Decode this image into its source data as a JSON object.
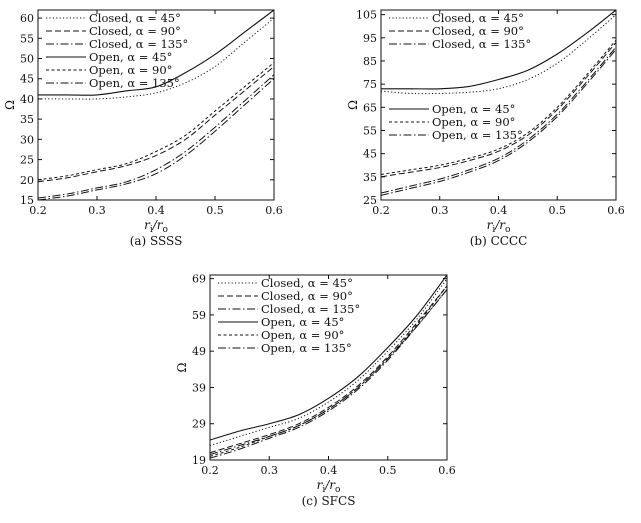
{
  "chart_data": [
    {
      "type": "line",
      "caption": "(a) SSSS",
      "xlabel_main": "r",
      "xlabel_sub1": "i",
      "xlabel_slash": "/r",
      "xlabel_sub2": "o",
      "ylabel": "Ω",
      "xlim": [
        0.2,
        0.6
      ],
      "ylim": [
        15,
        62
      ],
      "xticks": [
        "0.2",
        "0.3",
        "0.4",
        "0.5",
        "0.6"
      ],
      "yticks": [
        "15",
        "20",
        "25",
        "30",
        "35",
        "40",
        "45",
        "50",
        "55",
        "60"
      ],
      "x": [
        0.2,
        0.25,
        0.3,
        0.35,
        0.4,
        0.45,
        0.5,
        0.55,
        0.6
      ],
      "legend": [
        {
          "key": "c45",
          "label": "Closed, α = 45°"
        },
        {
          "key": "c90",
          "label": "Closed, α = 90°"
        },
        {
          "key": "c135",
          "label": "Closed, α = 135°"
        },
        {
          "key": "o45",
          "label": "Open, α = 45°"
        },
        {
          "key": "o90",
          "label": "Open, α = 90°"
        },
        {
          "key": "o135",
          "label": "Open, α = 135°"
        }
      ],
      "series": [
        {
          "key": "c45",
          "dash": "dot",
          "values": [
            40,
            40,
            40,
            40.5,
            41.5,
            44,
            48,
            54,
            60
          ]
        },
        {
          "key": "c90",
          "dash": "dash",
          "values": [
            19.5,
            20.5,
            22,
            23.5,
            26,
            30,
            36,
            42,
            48
          ]
        },
        {
          "key": "c135",
          "dash": "dashdot",
          "values": [
            15.5,
            16.5,
            18,
            19.5,
            22.5,
            27,
            33,
            39.5,
            46
          ]
        },
        {
          "key": "o45",
          "dash": "solid",
          "values": [
            41,
            41,
            41,
            42,
            43,
            46.5,
            51,
            56.5,
            62
          ]
        },
        {
          "key": "o90",
          "dash": "shortdash",
          "values": [
            20,
            21,
            22.5,
            24,
            27,
            31,
            37,
            43,
            49
          ]
        },
        {
          "key": "o135",
          "dash": "dashdot",
          "values": [
            15,
            16,
            17.5,
            19,
            21.5,
            26,
            32,
            38.5,
            45
          ]
        }
      ]
    },
    {
      "type": "line",
      "caption": "(b) CCCC",
      "xlabel_main": "r",
      "xlabel_sub1": "i",
      "xlabel_slash": "/r",
      "xlabel_sub2": "o",
      "ylabel": "Ω",
      "xlim": [
        0.2,
        0.6
      ],
      "ylim": [
        25,
        107
      ],
      "xticks": [
        "0.2",
        "0.3",
        "0.4",
        "0.5",
        "0.6"
      ],
      "yticks": [
        "25",
        "35",
        "45",
        "55",
        "65",
        "75",
        "85",
        "95",
        "105"
      ],
      "x": [
        0.2,
        0.25,
        0.3,
        0.35,
        0.4,
        0.45,
        0.5,
        0.55,
        0.6
      ],
      "legend": [
        {
          "key": "c45",
          "label": "Closed, α = 45°"
        },
        {
          "key": "c90",
          "label": "Closed, α = 90°"
        },
        {
          "key": "c135",
          "label": "Closed, α = 135°"
        },
        {
          "key": "o45",
          "label": "Open, α = 45°"
        },
        {
          "key": "o90",
          "label": "Open, α = 90°"
        },
        {
          "key": "o135",
          "label": "Open, α = 135°"
        }
      ],
      "series": [
        {
          "key": "c45",
          "dash": "dot",
          "values": [
            72,
            71,
            71,
            71.5,
            73,
            77,
            84,
            94,
            105
          ]
        },
        {
          "key": "c90",
          "dash": "dash",
          "values": [
            35,
            37,
            39,
            42,
            46,
            53,
            64,
            78,
            93
          ]
        },
        {
          "key": "c135",
          "dash": "dashdot",
          "values": [
            28,
            31,
            34,
            38,
            43,
            51,
            62,
            76,
            91
          ]
        },
        {
          "key": "o45",
          "dash": "solid",
          "values": [
            73,
            73,
            73,
            74,
            77,
            81,
            88,
            97,
            107
          ]
        },
        {
          "key": "o90",
          "dash": "shortdash",
          "values": [
            36,
            38,
            40,
            43,
            47,
            54,
            65,
            79,
            94
          ]
        },
        {
          "key": "o135",
          "dash": "dashdot",
          "values": [
            27,
            30,
            33,
            37,
            42,
            50,
            61,
            75,
            90
          ]
        }
      ]
    },
    {
      "type": "line",
      "caption": "(c) SFCS",
      "xlabel_main": "r",
      "xlabel_sub1": "i",
      "xlabel_slash": "/r",
      "xlabel_sub2": "o",
      "ylabel": "Ω",
      "xlim": [
        0.2,
        0.6
      ],
      "ylim": [
        19,
        70
      ],
      "xticks": [
        "0.2",
        "0.3",
        "0.4",
        "0.5",
        "0.6"
      ],
      "yticks": [
        "19",
        "29",
        "39",
        "49",
        "59",
        "69"
      ],
      "x": [
        0.2,
        0.25,
        0.3,
        0.35,
        0.4,
        0.45,
        0.5,
        0.55,
        0.6
      ],
      "legend": [
        {
          "key": "c45",
          "label": "Closed, α = 45°"
        },
        {
          "key": "c90",
          "label": "Closed, α = 90°"
        },
        {
          "key": "c135",
          "label": "Closed, α = 135°"
        },
        {
          "key": "o45",
          "label": "Open, α = 45°"
        },
        {
          "key": "o90",
          "label": "Open, α = 90°"
        },
        {
          "key": "o135",
          "label": "Open, α = 135°"
        }
      ],
      "series": [
        {
          "key": "c45",
          "dash": "dot",
          "values": [
            23,
            25.5,
            28,
            30.5,
            35,
            41,
            49,
            58,
            69
          ]
        },
        {
          "key": "c90",
          "dash": "dash",
          "values": [
            21,
            23.5,
            26,
            29,
            33.5,
            39.5,
            47.5,
            57,
            67
          ]
        },
        {
          "key": "c135",
          "dash": "dashdot",
          "values": [
            20.5,
            23,
            25.5,
            28.5,
            33,
            39,
            47,
            56,
            66
          ]
        },
        {
          "key": "o45",
          "dash": "solid",
          "values": [
            24.5,
            27,
            29,
            31.5,
            36,
            42,
            50,
            59,
            70
          ]
        },
        {
          "key": "o90",
          "dash": "shortdash",
          "values": [
            20,
            22.5,
            25.5,
            28.5,
            33,
            39,
            47,
            56.5,
            67
          ]
        },
        {
          "key": "o135",
          "dash": "dashdot",
          "values": [
            19.5,
            22,
            25,
            28,
            32.5,
            38.5,
            46.5,
            56,
            66
          ]
        }
      ]
    }
  ]
}
